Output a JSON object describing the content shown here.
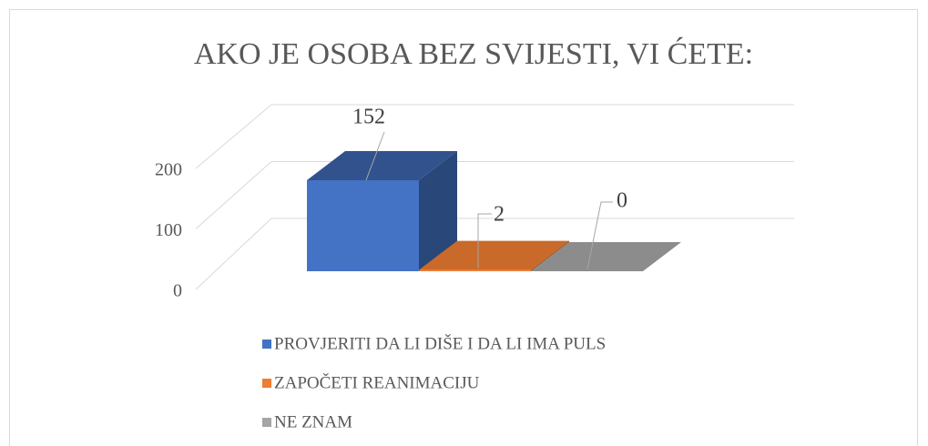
{
  "chart_data": {
    "type": "bar3d",
    "title": "AKO JE OSOBA BEZ SVIJESTI, VI ĆETE:",
    "series": [
      {
        "name": "PROVJERITI DA LI DIŠE I DA LI IMA PULS",
        "color": "#4472c4",
        "values": [
          152
        ]
      },
      {
        "name": "ZAPOČETI REANIMACIJU",
        "color": "#ed7d31",
        "values": [
          2
        ]
      },
      {
        "name": "NE ZNAM",
        "color": "#a5a5a5",
        "values": [
          0
        ]
      }
    ],
    "ylim": [
      0,
      200
    ],
    "yticks": [
      0,
      100,
      200
    ],
    "grid": true,
    "legend": "bottom"
  }
}
